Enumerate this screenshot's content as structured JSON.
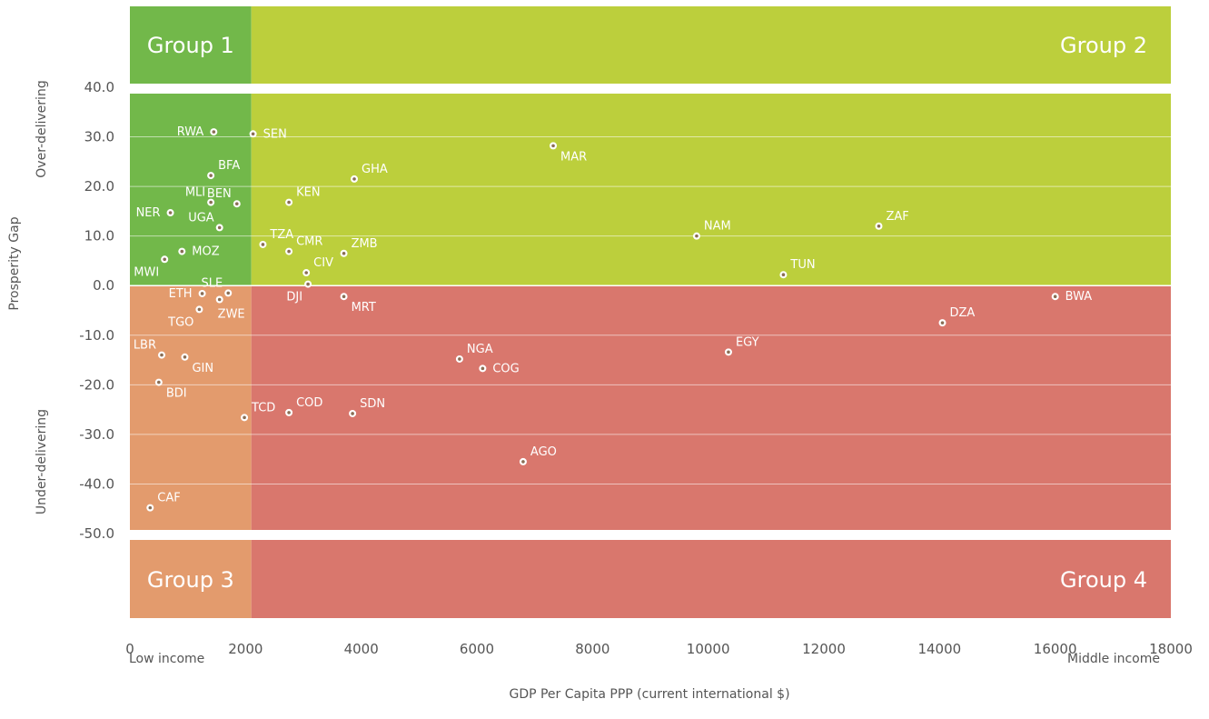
{
  "chart_data": {
    "type": "scatter",
    "xlabel": "GDP Per Capita PPP (current international $)",
    "ylabel": "Prosperity Gap",
    "xlim": [
      0,
      18000
    ],
    "ylim": [
      -50,
      40
    ],
    "x_ticks": [
      "0",
      "2000",
      "4000",
      "6000",
      "8000",
      "10000",
      "12000",
      "14000",
      "16000",
      "18000"
    ],
    "y_ticks": [
      "40.0",
      "30.0",
      "20.0",
      "10.0",
      "0.0",
      "-10.0",
      "-20.0",
      "-30.0",
      "-40.0",
      "-50.0"
    ],
    "x_threshold": 2100,
    "y_threshold": 0,
    "side_labels": {
      "top": "Over-delivering",
      "bottom": "Under-delivering"
    },
    "income_labels": {
      "left": "Low income",
      "right": "Middle income"
    },
    "groups": [
      {
        "label": "Group 1",
        "color": "#72b84a"
      },
      {
        "label": "Group 2",
        "color": "#bccf3c"
      },
      {
        "label": "Group 3",
        "color": "#e39b6d"
      },
      {
        "label": "Group 4",
        "color": "#d9776d"
      }
    ],
    "points": [
      {
        "label": "RWA",
        "x": 1450,
        "y": 31.0,
        "anchor": "left"
      },
      {
        "label": "SEN",
        "x": 2130,
        "y": 30.6,
        "anchor": "right"
      },
      {
        "label": "MAR",
        "x": 7320,
        "y": 28.2,
        "anchor": "right-below"
      },
      {
        "label": "BFA",
        "x": 1400,
        "y": 22.2,
        "anchor": "right-above"
      },
      {
        "label": "GHA",
        "x": 3880,
        "y": 21.5,
        "anchor": "right-above"
      },
      {
        "label": "MLI",
        "x": 1400,
        "y": 16.8,
        "anchor": "left-above"
      },
      {
        "label": "BEN",
        "x": 1850,
        "y": 16.5,
        "anchor": "left-above"
      },
      {
        "label": "KEN",
        "x": 2750,
        "y": 16.8,
        "anchor": "right-above"
      },
      {
        "label": "NER",
        "x": 700,
        "y": 14.7,
        "anchor": "left"
      },
      {
        "label": "UGA",
        "x": 1550,
        "y": 11.7,
        "anchor": "left-above"
      },
      {
        "label": "NAM",
        "x": 9800,
        "y": 10.0,
        "anchor": "right-above"
      },
      {
        "label": "ZAF",
        "x": 12950,
        "y": 12.0,
        "anchor": "right-above"
      },
      {
        "label": "TZA",
        "x": 2300,
        "y": 8.3,
        "anchor": "right-above"
      },
      {
        "label": "CMR",
        "x": 2750,
        "y": 6.9,
        "anchor": "right-above"
      },
      {
        "label": "ZMB",
        "x": 3700,
        "y": 6.5,
        "anchor": "right-above"
      },
      {
        "label": "MOZ",
        "x": 900,
        "y": 6.9,
        "anchor": "right"
      },
      {
        "label": "MWI",
        "x": 600,
        "y": 5.3,
        "anchor": "left-below"
      },
      {
        "label": "CIV",
        "x": 3050,
        "y": 2.6,
        "anchor": "right-above"
      },
      {
        "label": "TUN",
        "x": 11300,
        "y": 2.2,
        "anchor": "right-above"
      },
      {
        "label": "DJI",
        "x": 3080,
        "y": 0.3,
        "anchor": "left-below"
      },
      {
        "label": "SLE",
        "x": 1700,
        "y": -1.5,
        "anchor": "left-above"
      },
      {
        "label": "ETH",
        "x": 1250,
        "y": -1.6,
        "anchor": "left"
      },
      {
        "label": "ZWE",
        "x": 1550,
        "y": -2.8,
        "anchor": "below"
      },
      {
        "label": "MRT",
        "x": 3700,
        "y": -2.2,
        "anchor": "right-below"
      },
      {
        "label": "BWA",
        "x": 16000,
        "y": -2.2,
        "anchor": "right"
      },
      {
        "label": "TGO",
        "x": 1200,
        "y": -4.8,
        "anchor": "left-below"
      },
      {
        "label": "DZA",
        "x": 14050,
        "y": -7.5,
        "anchor": "right-above"
      },
      {
        "label": "EGY",
        "x": 10350,
        "y": -13.4,
        "anchor": "right-above"
      },
      {
        "label": "LBR",
        "x": 550,
        "y": -14.0,
        "anchor": "left-above"
      },
      {
        "label": "GIN",
        "x": 950,
        "y": -14.4,
        "anchor": "right-below"
      },
      {
        "label": "NGA",
        "x": 5700,
        "y": -14.8,
        "anchor": "right-above"
      },
      {
        "label": "COG",
        "x": 6100,
        "y": -16.7,
        "anchor": "right"
      },
      {
        "label": "BDI",
        "x": 500,
        "y": -19.5,
        "anchor": "right-below"
      },
      {
        "label": "TCD",
        "x": 1980,
        "y": -26.6,
        "anchor": "right-above"
      },
      {
        "label": "COD",
        "x": 2750,
        "y": -25.6,
        "anchor": "right-above"
      },
      {
        "label": "SDN",
        "x": 3850,
        "y": -25.8,
        "anchor": "right-above"
      },
      {
        "label": "AGO",
        "x": 6800,
        "y": -35.5,
        "anchor": "right-above"
      },
      {
        "label": "CAF",
        "x": 350,
        "y": -44.8,
        "anchor": "right-above"
      }
    ]
  }
}
